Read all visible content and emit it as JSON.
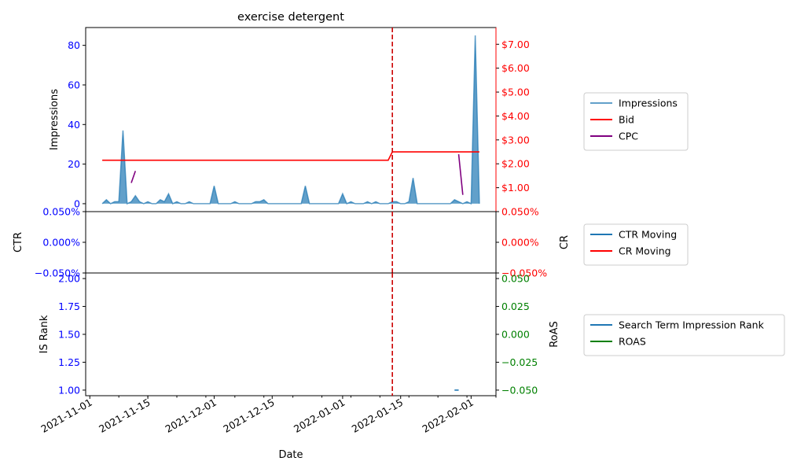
{
  "title": "exercise detergent",
  "colors": {
    "impressions": "#1f77b4",
    "bid": "#ff0000",
    "cpc": "#800080",
    "ctr": "#1f77b4",
    "cr": "#ff0000",
    "rank": "#1f77b4",
    "roas": "#008000",
    "left_tick": "#0000ff",
    "cr_tick": "#ff0000",
    "roas_tick": "#008000",
    "vline": "#cc0000"
  },
  "chart_data": [
    {
      "type": "area",
      "panel": "top",
      "title": "exercise detergent",
      "ylabel": "Impressions",
      "ylim": [
        -4,
        89
      ],
      "yticks": [
        0,
        20,
        40,
        60,
        80
      ],
      "ylabel_right": "",
      "ylim_right": [
        0,
        7.7
      ],
      "yticks_right": [
        1,
        2,
        3,
        4,
        5,
        6,
        7
      ],
      "yticklabels_right": [
        "$1.00",
        "$2.00",
        "$3.00",
        "$4.00",
        "$5.00",
        "$6.00",
        "$7.00"
      ],
      "series": [
        {
          "name": "Impressions",
          "key": "impressions",
          "axis": "left",
          "points": [
            [
              "2021-11-04",
              0
            ],
            [
              "2021-11-05",
              2
            ],
            [
              "2021-11-06",
              0
            ],
            [
              "2021-11-07",
              1
            ],
            [
              "2021-11-08",
              1
            ],
            [
              "2021-11-09",
              37
            ],
            [
              "2021-11-10",
              0
            ],
            [
              "2021-11-11",
              1
            ],
            [
              "2021-11-12",
              4
            ],
            [
              "2021-11-13",
              1
            ],
            [
              "2021-11-14",
              0
            ],
            [
              "2021-11-15",
              1
            ],
            [
              "2021-11-16",
              0
            ],
            [
              "2021-11-17",
              0
            ],
            [
              "2021-11-18",
              2
            ],
            [
              "2021-11-19",
              1
            ],
            [
              "2021-11-20",
              5
            ],
            [
              "2021-11-21",
              0
            ],
            [
              "2021-11-22",
              1
            ],
            [
              "2021-11-23",
              0
            ],
            [
              "2021-11-24",
              0
            ],
            [
              "2021-11-25",
              1
            ],
            [
              "2021-11-26",
              0
            ],
            [
              "2021-11-30",
              0
            ],
            [
              "2021-12-01",
              9
            ],
            [
              "2021-12-02",
              0
            ],
            [
              "2021-12-05",
              0
            ],
            [
              "2021-12-06",
              1
            ],
            [
              "2021-12-07",
              0
            ],
            [
              "2021-12-10",
              0
            ],
            [
              "2021-12-11",
              1
            ],
            [
              "2021-12-12",
              1
            ],
            [
              "2021-12-13",
              2
            ],
            [
              "2021-12-14",
              0
            ],
            [
              "2021-12-22",
              0
            ],
            [
              "2021-12-23",
              9
            ],
            [
              "2021-12-24",
              0
            ],
            [
              "2021-12-31",
              0
            ],
            [
              "2022-01-01",
              5
            ],
            [
              "2022-01-02",
              0
            ],
            [
              "2022-01-03",
              1
            ],
            [
              "2022-01-04",
              0
            ],
            [
              "2022-01-06",
              0
            ],
            [
              "2022-01-07",
              1
            ],
            [
              "2022-01-08",
              0
            ],
            [
              "2022-01-09",
              1
            ],
            [
              "2022-01-10",
              0
            ],
            [
              "2022-01-12",
              0
            ],
            [
              "2022-01-13",
              1
            ],
            [
              "2022-01-14",
              1
            ],
            [
              "2022-01-15",
              0
            ],
            [
              "2022-01-16",
              0
            ],
            [
              "2022-01-17",
              1
            ],
            [
              "2022-01-18",
              13
            ],
            [
              "2022-01-19",
              0
            ],
            [
              "2022-01-27",
              0
            ],
            [
              "2022-01-28",
              2
            ],
            [
              "2022-01-29",
              1
            ],
            [
              "2022-01-30",
              0
            ],
            [
              "2022-01-31",
              1
            ],
            [
              "2022-02-01",
              0
            ],
            [
              "2022-02-02",
              85
            ],
            [
              "2022-02-03",
              0
            ]
          ]
        },
        {
          "name": "Bid",
          "key": "bid",
          "axis": "right",
          "points": [
            [
              "2021-11-04",
              2.15
            ],
            [
              "2022-01-12",
              2.15
            ],
            [
              "2022-01-13",
              2.5
            ],
            [
              "2022-02-03",
              2.5
            ]
          ]
        },
        {
          "name": "CPC",
          "key": "cpc",
          "axis": "right",
          "segments": [
            [
              [
                "2021-11-11",
                1.2
              ],
              [
                "2021-11-12",
                1.7
              ]
            ],
            [
              [
                "2022-01-29",
                2.4
              ],
              [
                "2022-01-30",
                0.7
              ]
            ]
          ]
        }
      ]
    },
    {
      "type": "line",
      "panel": "middle",
      "ylabel": "CTR",
      "ylim": [
        -0.05,
        0.05
      ],
      "yticks": [
        -0.05,
        0,
        0.05
      ],
      "yticklabels": [
        "−0.050%",
        "0.000%",
        "0.050%"
      ],
      "ylabel_right": "CR",
      "ylim_right": [
        -0.05,
        0.05
      ],
      "yticks_right": [
        -0.05,
        0,
        0.05
      ],
      "yticklabels_right": [
        "−0.050%",
        "0.000%",
        "0.050%"
      ],
      "series": [
        {
          "name": "CTR Moving",
          "key": "ctr",
          "axis": "left",
          "points": []
        },
        {
          "name": "CR Moving",
          "key": "cr",
          "axis": "right",
          "points": []
        }
      ]
    },
    {
      "type": "line",
      "panel": "bottom",
      "ylabel": "IS Rank",
      "ylim": [
        0.95,
        2.05
      ],
      "yticks": [
        1.0,
        1.25,
        1.5,
        1.75,
        2.0
      ],
      "yticklabels": [
        "1.00",
        "1.25",
        "1.50",
        "1.75",
        "2.00"
      ],
      "ylabel_right": "RoAS",
      "ylim_right": [
        -0.055,
        0.055
      ],
      "yticks_right": [
        -0.05,
        -0.025,
        0,
        0.025,
        0.05
      ],
      "yticklabels_right": [
        "−0.050",
        "−0.025",
        "0.000",
        "0.025",
        "0.050"
      ],
      "xlabel": "Date",
      "xlim": [
        "2021-10-31",
        "2022-02-07"
      ],
      "xticks": [
        "2021-11-01",
        "2021-11-15",
        "2021-12-01",
        "2021-12-15",
        "2022-01-01",
        "2022-01-15",
        "2022-02-01"
      ],
      "xticklabels": [
        "2021-11-01",
        "2021-11-15",
        "2021-12-01",
        "2021-12-15",
        "2022-01-01",
        "2022-01-15",
        "2022-02-01"
      ],
      "series": [
        {
          "name": "Search Term Impression Rank",
          "key": "rank",
          "axis": "left",
          "points": [
            [
              "2022-01-28",
              1.0
            ],
            [
              "2022-01-29",
              1.0
            ]
          ]
        },
        {
          "name": "ROAS",
          "key": "roas",
          "axis": "right",
          "points": []
        }
      ]
    }
  ],
  "vline_date": "2022-01-13",
  "legends": [
    [
      "Impressions",
      "Bid",
      "CPC"
    ],
    [
      "CTR Moving",
      "CR Moving"
    ],
    [
      "Search Term Impression Rank",
      "ROAS"
    ]
  ]
}
